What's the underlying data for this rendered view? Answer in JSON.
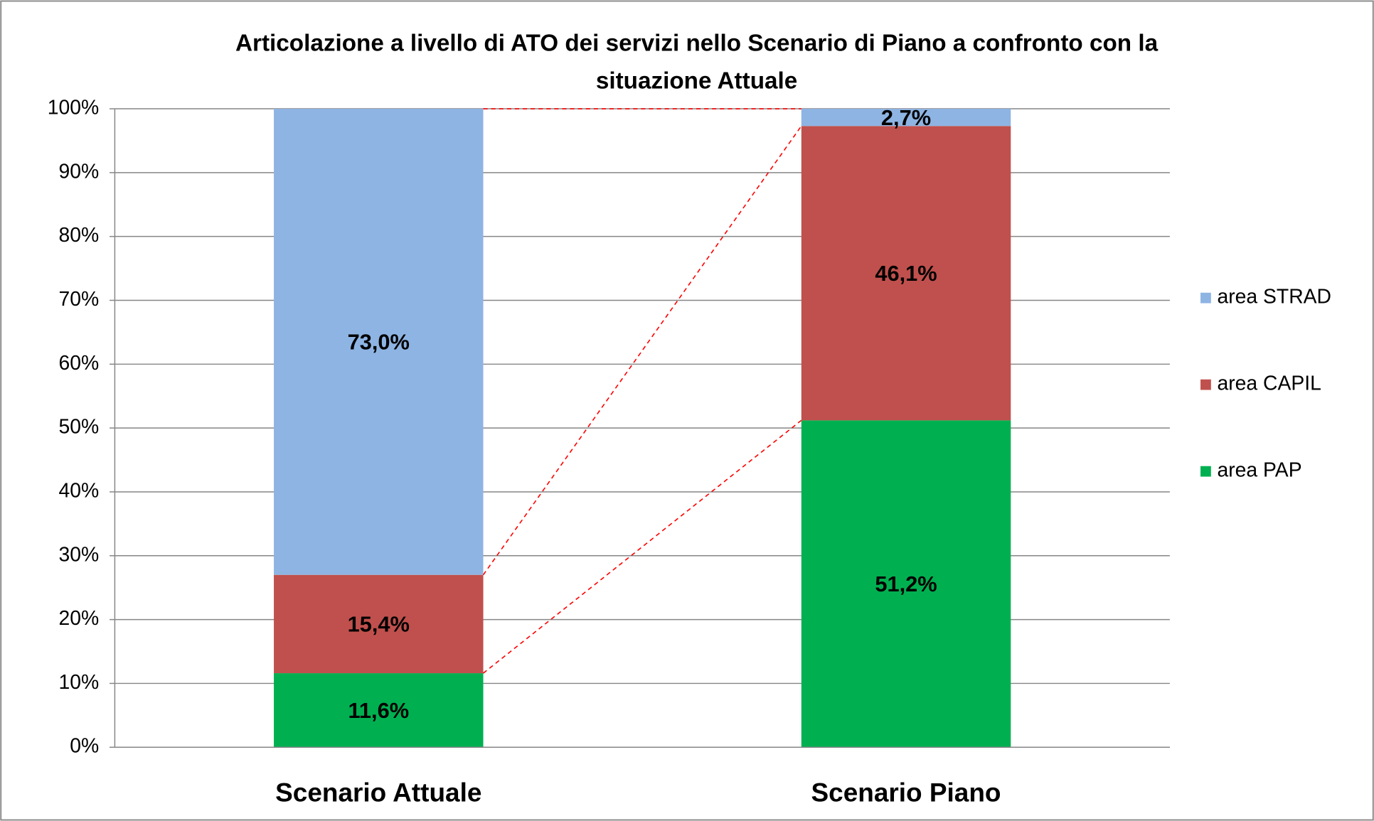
{
  "chart_data": {
    "type": "stacked_bar",
    "title": "Articolazione a livello di ATO dei servizi nello Scenario di Piano a confronto con la situazione Attuale",
    "categories": [
      "Scenario Attuale",
      "Scenario Piano"
    ],
    "series": [
      {
        "name": "area PAP",
        "color": "#00b050",
        "values": [
          11.6,
          51.2
        ],
        "value_labels": [
          "11,6%",
          "51,2%"
        ]
      },
      {
        "name": "area CAPIL",
        "color": "#c0504d",
        "values": [
          15.4,
          46.1
        ],
        "value_labels": [
          "15,4%",
          "46,1%"
        ]
      },
      {
        "name": "area STRAD",
        "color": "#8eb4e3",
        "values": [
          73.0,
          2.7
        ],
        "value_labels": [
          "73,0%",
          "2,7%"
        ]
      }
    ],
    "ylim": [
      0,
      100
    ],
    "yticks": [
      {
        "value": 0,
        "label": "0%"
      },
      {
        "value": 10,
        "label": "10%"
      },
      {
        "value": 20,
        "label": "20%"
      },
      {
        "value": 30,
        "label": "30%"
      },
      {
        "value": 40,
        "label": "40%"
      },
      {
        "value": 50,
        "label": "50%"
      },
      {
        "value": 60,
        "label": "60%"
      },
      {
        "value": 70,
        "label": "70%"
      },
      {
        "value": 80,
        "label": "80%"
      },
      {
        "value": 90,
        "label": "90%"
      },
      {
        "value": 100,
        "label": "100%"
      }
    ],
    "grid": true,
    "legend": "right"
  }
}
